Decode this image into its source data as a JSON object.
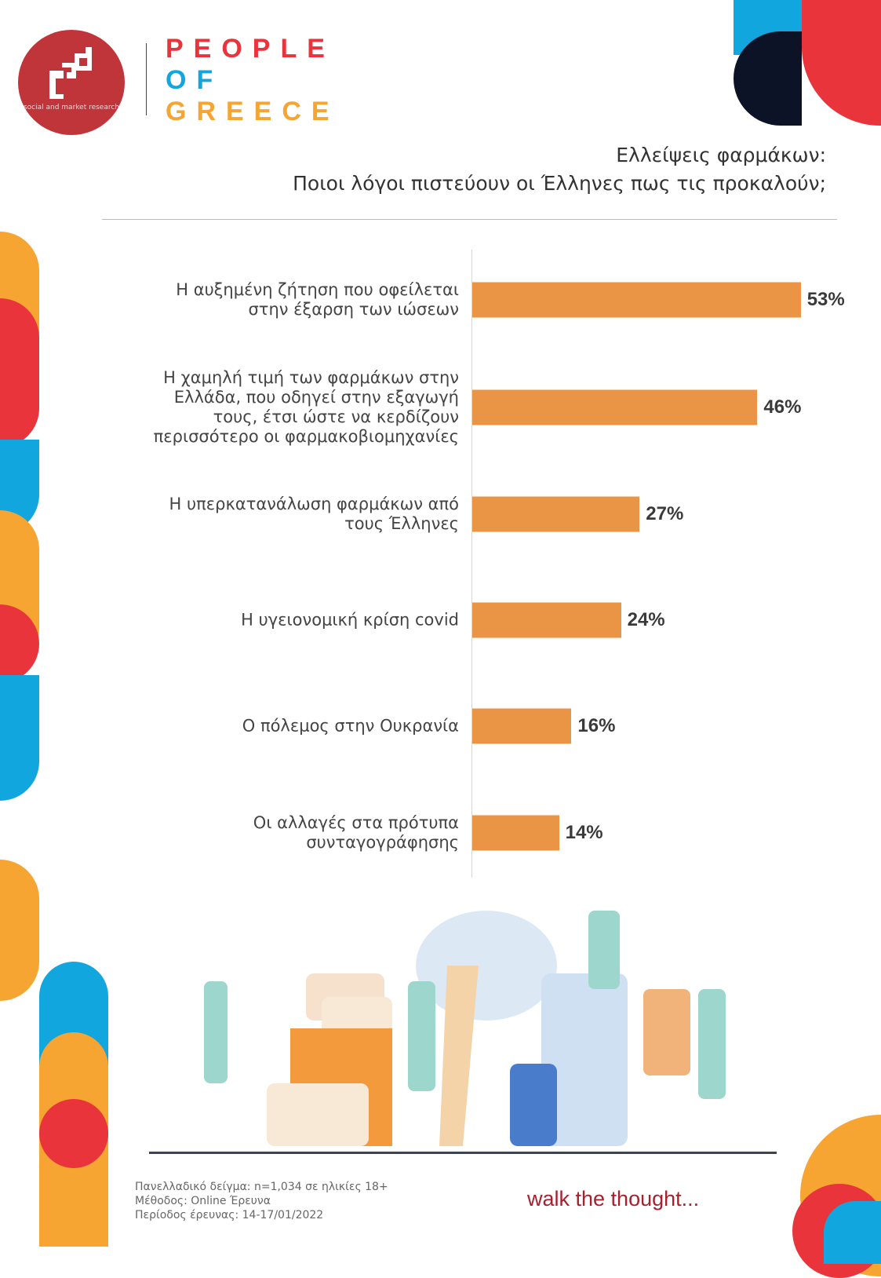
{
  "logo": {
    "brand_text": "social and market research",
    "partner_lines": [
      "PEOPLE",
      "OF",
      "GREECE"
    ]
  },
  "title_lines": [
    "Ελλείψεις φαρμάκων:",
    "Ποιοι λόγοι πιστεύουν οι Έλληνες πως τις προκαλούν;"
  ],
  "chart_data": {
    "type": "bar",
    "orientation": "horizontal",
    "categories": [
      "Η αυξημένη ζήτηση που οφείλεται στην έξαρση των ιώσεων",
      "Η χαμηλή τιμή των φαρμάκων στην Ελλάδα, που οδηγεί στην εξαγωγή τους, έτσι ώστε να κερδίζουν περισσότερο οι φαρμακοβιομηχανίες",
      "Η υπερκατανάλωση φαρμάκων από τους Έλληνες",
      "Η υγειονομική κρίση covid",
      "Ο πόλεμος στην Ουκρανία",
      "Οι αλλαγές στα πρότυπα συνταγογράφησης"
    ],
    "category_lines": [
      [
        "Η αυξημένη ζήτηση που οφείλεται",
        "στην έξαρση των ιώσεων"
      ],
      [
        "Η χαμηλή τιμή των φαρμάκων στην",
        "Ελλάδα, που οδηγεί στην εξαγωγή",
        "τους, έτσι ώστε να κερδίζουν",
        "περισσότερο οι φαρμακοβιομηχανίες"
      ],
      [
        "Η υπερκατανάλωση φαρμάκων από",
        "τους Έλληνες"
      ],
      [
        "Η υγειονομική κρίση covid"
      ],
      [
        "Ο πόλεμος στην Ουκρανία"
      ],
      [
        "Οι αλλαγές στα πρότυπα",
        "συνταγογράφησης"
      ]
    ],
    "values": [
      53,
      46,
      27,
      24,
      16,
      14
    ],
    "value_labels": [
      "53%",
      "46%",
      "27%",
      "24%",
      "16%",
      "14%"
    ],
    "bar_color": "#ea9446",
    "grid": false
  },
  "footer": {
    "lines": [
      "Πανελλαδικό δείγμα: n=1,034 σε ηλικίες 18+",
      "Μέθοδος: Online Έρευνα",
      "Περίοδος έρευνας: 14-17/01/2022"
    ],
    "tagline": "walk the thought..."
  },
  "colors": {
    "orange": "#f6a532",
    "red": "#e8343a",
    "blue": "#12a6de",
    "navy": "#0d1326",
    "brand_red": "#c0353a"
  }
}
